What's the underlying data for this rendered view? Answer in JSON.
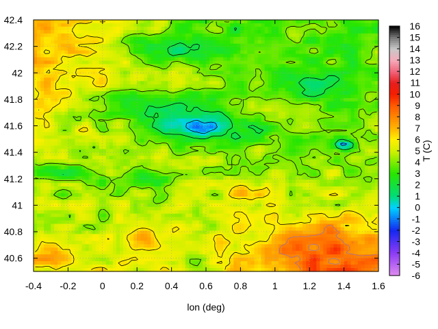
{
  "chart_data": {
    "type": "heatmap",
    "title": "",
    "xlabel": "lon (deg)",
    "ylabel": "",
    "colorbar_label": "T (C)",
    "xlim": [
      -0.4,
      1.6
    ],
    "ylim": [
      40.5,
      42.4
    ],
    "x_ticks": [
      "-0.4",
      "-0.2",
      "0",
      "0.2",
      "0.4",
      "0.6",
      "0.8",
      "1",
      "1.2",
      "1.4",
      "1.6"
    ],
    "y_ticks": [
      "40.6",
      "40.8",
      "41",
      "41.2",
      "41.4",
      "41.6",
      "41.8",
      "42",
      "42.2",
      "42.4"
    ],
    "colorbar_ticks": [
      "-6",
      "-5",
      "-4",
      "-3",
      "-2",
      "-1",
      "0",
      "1",
      "2",
      "3",
      "4",
      "5",
      "6",
      "7",
      "8",
      "9",
      "10",
      "11",
      "12",
      "13",
      "14",
      "15",
      "16"
    ],
    "colorbar_range": [
      -6,
      16
    ],
    "grid": true,
    "contours": true,
    "colorscale": [
      {
        "t": -6,
        "color": "#e08cf0"
      },
      {
        "t": -4,
        "color": "#8c3cf5"
      },
      {
        "t": -2,
        "color": "#1428f0"
      },
      {
        "t": 0,
        "color": "#00d2ff"
      },
      {
        "t": 1,
        "color": "#00dc78"
      },
      {
        "t": 3,
        "color": "#28e600"
      },
      {
        "t": 5,
        "color": "#d2f000"
      },
      {
        "t": 6,
        "color": "#fff000"
      },
      {
        "t": 7,
        "color": "#ffb400"
      },
      {
        "t": 9,
        "color": "#ff5a00"
      },
      {
        "t": 10,
        "color": "#f51e00"
      },
      {
        "t": 11,
        "color": "#e61e1e"
      },
      {
        "t": 12,
        "color": "#f0647a"
      },
      {
        "t": 13,
        "color": "#f5aab9"
      },
      {
        "t": 14,
        "color": "#c8c8c8"
      },
      {
        "t": 15,
        "color": "#787878"
      },
      {
        "t": 16,
        "color": "#000000"
      }
    ],
    "field_features": [
      {
        "lon": 0.55,
        "lat": 41.6,
        "sx": 0.3,
        "sy": 0.12,
        "amp": -4.5
      },
      {
        "lon": 0.2,
        "lat": 41.75,
        "sx": 0.25,
        "sy": 0.1,
        "amp": -2.5
      },
      {
        "lon": -0.2,
        "lat": 41.25,
        "sx": 0.18,
        "sy": 0.08,
        "amp": -2.0
      },
      {
        "lon": 0.3,
        "lat": 41.2,
        "sx": 0.15,
        "sy": 0.07,
        "amp": -2.0
      },
      {
        "lon": 0.4,
        "lat": 42.2,
        "sx": 0.25,
        "sy": 0.1,
        "amp": -2.5
      },
      {
        "lon": 1.4,
        "lat": 41.46,
        "sx": 0.05,
        "sy": 0.04,
        "amp": -5.0
      },
      {
        "lon": 1.25,
        "lat": 41.9,
        "sx": 0.2,
        "sy": 0.1,
        "amp": -2.0
      },
      {
        "lon": 1.25,
        "lat": 40.65,
        "sx": 0.35,
        "sy": 0.2,
        "amp": 2.5
      },
      {
        "lon": 0.25,
        "lat": 40.75,
        "sx": 0.15,
        "sy": 0.1,
        "amp": 2.0
      },
      {
        "lon": 0.9,
        "lat": 41.1,
        "sx": 0.15,
        "sy": 0.08,
        "amp": 2.0
      },
      {
        "lon": -0.3,
        "lat": 40.6,
        "sx": 0.2,
        "sy": 0.1,
        "amp": 1.5
      }
    ]
  }
}
